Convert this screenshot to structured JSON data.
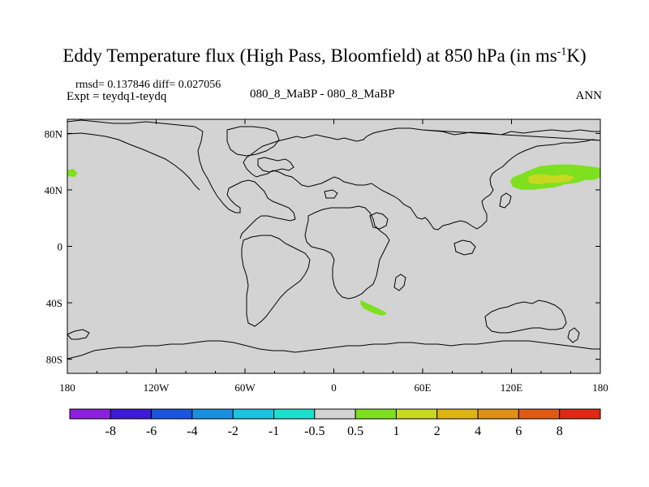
{
  "title": {
    "main": "Eddy Temperature flux (High Pass, Bloomfield) at 850 hPa (in ms",
    "sup": "-1",
    "unit_tail": "K)"
  },
  "stats": "rmsd= 0.137846 diff= 0.027056",
  "expt": "Expt = teydq1-teydq",
  "center_label": "080_8_MaBP - 080_8_MaBP",
  "season": "ANN",
  "map": {
    "lon_range": [
      -180,
      180
    ],
    "lat_range": [
      -90,
      90
    ],
    "x_ticks": [
      {
        "lon": -180,
        "label": "180"
      },
      {
        "lon": -120,
        "label": "120W"
      },
      {
        "lon": -60,
        "label": "60W"
      },
      {
        "lon": 0,
        "label": "0"
      },
      {
        "lon": 60,
        "label": "60E"
      },
      {
        "lon": 120,
        "label": "120E"
      },
      {
        "lon": 180,
        "label": "180"
      }
    ],
    "y_ticks": [
      {
        "lat": 80,
        "label": "80N"
      },
      {
        "lat": 40,
        "label": "40N"
      },
      {
        "lat": 0,
        "label": "0"
      },
      {
        "lat": -40,
        "label": "40S"
      },
      {
        "lat": -80,
        "label": "80S"
      }
    ],
    "background_color": "#d3d3d3",
    "coastline_color": "#000000",
    "anomalies": [
      {
        "name": "west-pacific-north",
        "level": "1",
        "color": "#7fe01f",
        "points": [
          [
            -180,
            54
          ],
          [
            -176,
            55
          ],
          [
            -173,
            52
          ],
          [
            -175,
            49
          ],
          [
            -180,
            50
          ]
        ]
      },
      {
        "name": "north-pacific-jet",
        "level": "1",
        "color": "#7fe01f",
        "points": [
          [
            121,
            49
          ],
          [
            126,
            51
          ],
          [
            132,
            54
          ],
          [
            140,
            57
          ],
          [
            150,
            58
          ],
          [
            160,
            58
          ],
          [
            170,
            57
          ],
          [
            178,
            56
          ],
          [
            180,
            55
          ],
          [
            180,
            49
          ],
          [
            176,
            47
          ],
          [
            170,
            47
          ],
          [
            164,
            45
          ],
          [
            156,
            44
          ],
          [
            150,
            42
          ],
          [
            142,
            41
          ],
          [
            134,
            40
          ],
          [
            127,
            40
          ],
          [
            121,
            42
          ],
          [
            119,
            46
          ]
        ]
      },
      {
        "name": "north-pacific-jet-core",
        "level": "2",
        "color": "#c8d820",
        "points": [
          [
            131,
            49
          ],
          [
            136,
            51
          ],
          [
            142,
            51
          ],
          [
            148,
            50
          ],
          [
            156,
            51
          ],
          [
            163,
            49
          ],
          [
            159,
            46
          ],
          [
            152,
            45
          ],
          [
            145,
            45
          ],
          [
            138,
            44
          ],
          [
            132,
            45
          ]
        ]
      },
      {
        "name": "south-africa",
        "level": "1",
        "color": "#7fe01f",
        "points": [
          [
            18,
            -38
          ],
          [
            22,
            -40
          ],
          [
            28,
            -43
          ],
          [
            34,
            -46
          ],
          [
            36,
            -48
          ],
          [
            32,
            -49
          ],
          [
            26,
            -47
          ],
          [
            20,
            -44
          ],
          [
            18,
            -41
          ]
        ]
      }
    ]
  },
  "colorbar": {
    "colors": [
      "#8f1fe0",
      "#3c1ad8",
      "#1a55e0",
      "#1a90e0",
      "#1ac4e0",
      "#1ae0cc",
      "#d3d3d3",
      "#7fe01f",
      "#c8d820",
      "#e0b414",
      "#e09014",
      "#e05a14",
      "#e02814"
    ],
    "labels": [
      "-8",
      "-6",
      "-4",
      "-2",
      "-1",
      "-0.5",
      "0.5",
      "1",
      "2",
      "4",
      "6",
      "8"
    ]
  }
}
